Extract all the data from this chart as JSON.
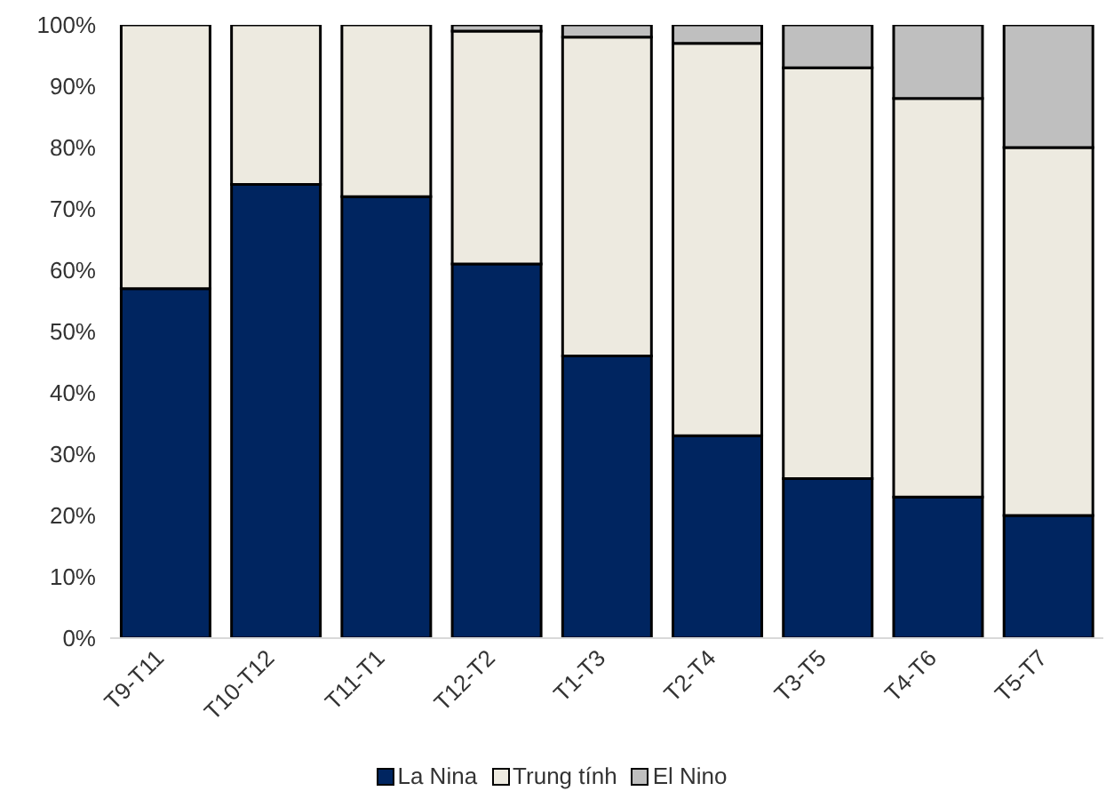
{
  "chart_data": {
    "type": "bar",
    "stacked": true,
    "categories": [
      "T9-T11",
      "T10-T12",
      "T11-T1",
      "T12-T2",
      "T1-T3",
      "T2-T4",
      "T3-T5",
      "T4-T6",
      "T5-T7"
    ],
    "series": [
      {
        "name": "La Nina",
        "color": "#002560",
        "values": [
          57,
          74,
          72,
          61,
          46,
          33,
          26,
          23,
          20
        ]
      },
      {
        "name": "Trung tính",
        "color": "#edeae0",
        "values": [
          43,
          26,
          28,
          38,
          52,
          64,
          67,
          65,
          60
        ]
      },
      {
        "name": "El Nino",
        "color": "#bfbfbf",
        "values": [
          0,
          0,
          0,
          1,
          2,
          3,
          7,
          12,
          20
        ]
      }
    ],
    "ylim": [
      0,
      100
    ],
    "yticks": [
      {
        "value": 0,
        "label": "0%"
      },
      {
        "value": 10,
        "label": "10%"
      },
      {
        "value": 20,
        "label": "20%"
      },
      {
        "value": 30,
        "label": "30%"
      },
      {
        "value": 40,
        "label": "40%"
      },
      {
        "value": 50,
        "label": "50%"
      },
      {
        "value": 60,
        "label": "60%"
      },
      {
        "value": 70,
        "label": "70%"
      },
      {
        "value": 80,
        "label": "80%"
      },
      {
        "value": 90,
        "label": "90%"
      },
      {
        "value": 100,
        "label": "100%"
      }
    ],
    "grid": false,
    "legend": "bottom"
  }
}
